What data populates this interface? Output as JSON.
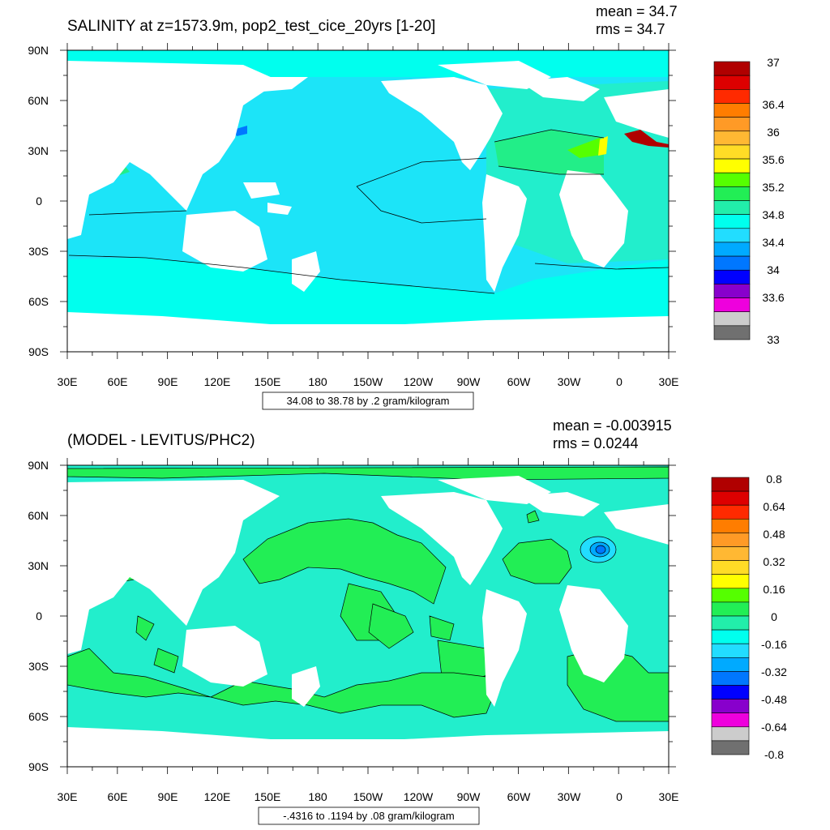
{
  "top_panel": {
    "title": "SALINITY at z=1573.9m, pop2_test_cice_20yrs [1-20]",
    "mean": "mean = 34.7",
    "rms": "rms = 34.7",
    "contour_info": "34.08 to 38.78 by .2 gram/kilogram",
    "colorbar_labels": [
      "37",
      "36.4",
      "36",
      "35.6",
      "35.2",
      "34.8",
      "34.4",
      "34",
      "33.6",
      "33"
    ],
    "colorbar_colors": [
      "#b00000",
      "#dd0000",
      "#ff2a00",
      "#ff7d00",
      "#ff9a26",
      "#ffb833",
      "#ffdc26",
      "#ffff00",
      "#55ff00",
      "#22ee55",
      "#22eeaa",
      "#00ffee",
      "#22ddff",
      "#00aaff",
      "#0077ff",
      "#0000ff",
      "#8800cc",
      "#ee00dd",
      "#cccccc",
      "#707070"
    ]
  },
  "bottom_panel": {
    "title": "(MODEL - LEVITUS/PHC2)",
    "mean": "mean = -0.003915",
    "rms": "rms = 0.0244",
    "contour_info": "-.4316 to .1194 by .08 gram/kilogram",
    "colorbar_labels": [
      "0.8",
      "0.64",
      "0.48",
      "0.32",
      "0.16",
      "0",
      "-0.16",
      "-0.32",
      "-0.48",
      "-0.64",
      "-0.8"
    ],
    "colorbar_colors": [
      "#b00000",
      "#dd0000",
      "#ff2a00",
      "#ff7d00",
      "#ff9a26",
      "#ffb833",
      "#ffdc26",
      "#ffff00",
      "#55ff00",
      "#22ee55",
      "#22eeaa",
      "#00ffee",
      "#22ddff",
      "#00aaff",
      "#0077ff",
      "#0000ff",
      "#8800cc",
      "#ee00dd",
      "#cccccc",
      "#707070"
    ]
  },
  "axes": {
    "lat_labels": [
      "90N",
      "60N",
      "30N",
      "0",
      "30S",
      "60S",
      "90S"
    ],
    "lon_labels": [
      "30E",
      "60E",
      "90E",
      "120E",
      "150E",
      "180",
      "150W",
      "120W",
      "90W",
      "60W",
      "30W",
      "0",
      "30E"
    ]
  },
  "map_colors": {
    "ocean_base_top": "#1ce4f8",
    "ocean_mid_top": "#00ffee",
    "ocean_warm_top": "#22ee88",
    "ocean_base_bottom": "#22eecc",
    "anomaly_green": "#22ee55",
    "land": "#ffffff"
  }
}
